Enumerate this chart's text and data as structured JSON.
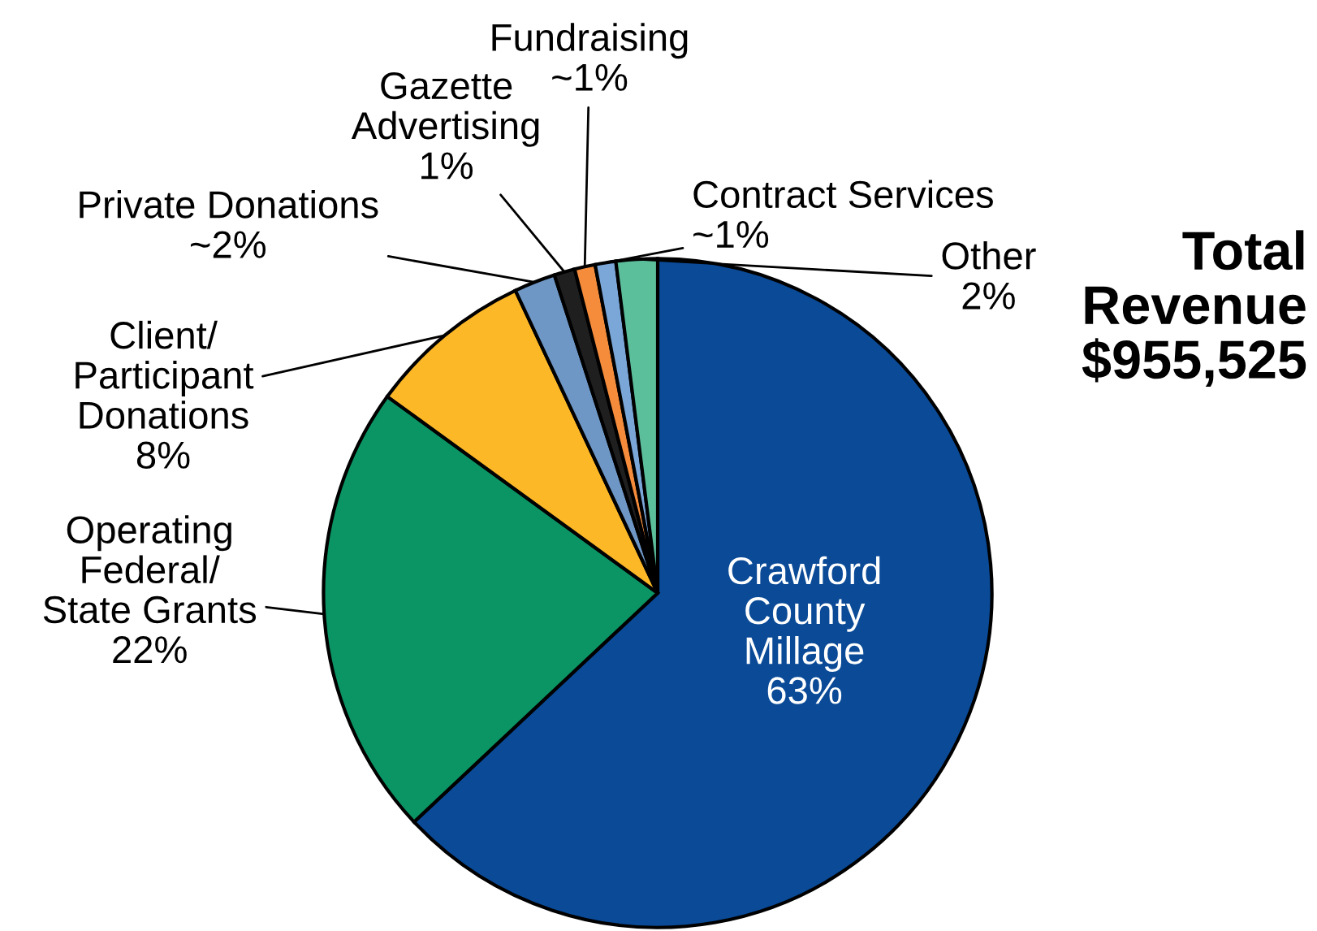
{
  "chart_data": {
    "type": "pie",
    "title": "Total\nRevenue\n$955,525",
    "categories": [
      "Crawford\nCounty\nMillage",
      "Operating\nFederal/\nState Grants",
      "Client/\nParticipant\nDonations",
      "Private Donations",
      "Gazette\nAdvertising",
      "Fundraising",
      "Contract Services",
      "Other"
    ],
    "values": [
      63,
      22,
      8,
      2,
      1,
      1,
      1,
      2
    ],
    "value_labels": [
      "63%",
      "22%",
      "8%",
      "~2%",
      "1%",
      "~1%",
      "~1%",
      "2%"
    ],
    "colors": [
      "#0a4a97",
      "#0b9464",
      "#fdb827",
      "#6e97c6",
      "#1f1f1f",
      "#f48c3c",
      "#7aa6d8",
      "#5bbf9c"
    ]
  }
}
